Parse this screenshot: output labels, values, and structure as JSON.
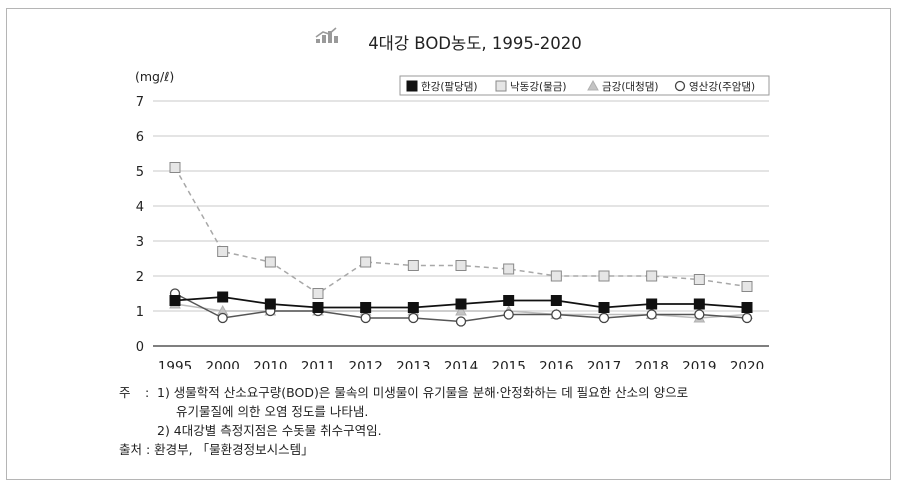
{
  "chart_data": {
    "type": "line",
    "title": "4대강 BOD농도, 1995-2020",
    "ylabel": "(mg/ℓ)",
    "xlabel": "",
    "categories": [
      "1995",
      "2000",
      "2010",
      "2011",
      "2012",
      "2013",
      "2014",
      "2015",
      "2016",
      "2017",
      "2018",
      "2019",
      "2020"
    ],
    "ylim": [
      0,
      7
    ],
    "yticks": [
      0,
      1,
      2,
      3,
      4,
      5,
      6,
      7
    ],
    "grid": true,
    "legend_position": "top-right",
    "series": [
      {
        "name": "한강(팔당댐)",
        "marker": "filled-square",
        "line": "solid",
        "color": "#111111",
        "values": [
          1.3,
          1.4,
          1.2,
          1.1,
          1.1,
          1.1,
          1.2,
          1.3,
          1.3,
          1.1,
          1.2,
          1.2,
          1.1
        ]
      },
      {
        "name": "낙동강(물금)",
        "marker": "open-square",
        "line": "dashed",
        "color": "#a8a8a8",
        "values": [
          5.1,
          2.7,
          2.4,
          1.5,
          2.4,
          2.3,
          2.3,
          2.2,
          2.0,
          2.0,
          2.0,
          1.9,
          1.7
        ]
      },
      {
        "name": "금강(대청댐)",
        "marker": "triangle",
        "line": "solid",
        "color": "#bdbdbd",
        "values": [
          1.2,
          1.0,
          1.0,
          1.0,
          1.0,
          1.0,
          1.0,
          1.0,
          0.9,
          0.9,
          0.9,
          0.8,
          0.9
        ]
      },
      {
        "name": "영산강(주암댐)",
        "marker": "open-circle",
        "line": "solid",
        "color": "#555555",
        "values": [
          1.5,
          0.8,
          1.0,
          1.0,
          0.8,
          0.8,
          0.7,
          0.9,
          0.9,
          0.8,
          0.9,
          0.9,
          0.8
        ]
      }
    ]
  },
  "colors": {
    "grid": "#c8c8c8",
    "axis": "#333333",
    "icon": "#9a9a9a"
  },
  "notes": {
    "label": "주",
    "colon": ":",
    "note1": "1) 생물학적 산소요구량(BOD)은 물속의 미생물이 유기물을 분해·안정화하는 데 필요한 산소의 양으로",
    "note1_cont": "유기물질에 의한 오염 정도를 나타냄.",
    "note2": "2) 4대강별 측정지점은 수돗물 취수구역임.",
    "source": "출처 : 환경부, 「물환경정보시스템」"
  }
}
